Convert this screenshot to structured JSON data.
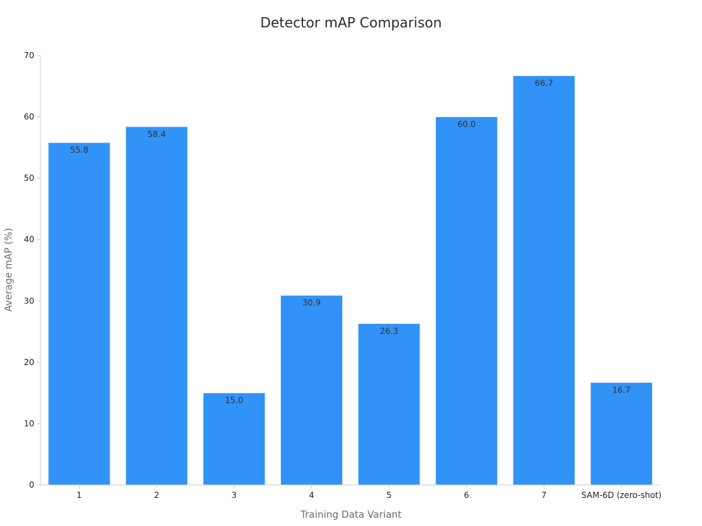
{
  "chart_data": {
    "type": "bar",
    "title": "Detector mAP Comparison",
    "xlabel": "Training Data Variant",
    "ylabel": "Average mAP (%)",
    "categories": [
      "1",
      "2",
      "3",
      "4",
      "5",
      "6",
      "7",
      "SAM-6D (zero-shot)"
    ],
    "values": [
      55.8,
      58.4,
      15.0,
      30.9,
      26.3,
      60.0,
      66.7,
      16.7
    ],
    "value_labels": [
      "55.8",
      "58.4",
      "15.0",
      "30.9",
      "26.3",
      "60.0",
      "66.7",
      "16.7"
    ],
    "ylim": [
      0,
      70
    ],
    "yticks": [
      0,
      10,
      20,
      30,
      40,
      50,
      60,
      70
    ],
    "grid": false,
    "legend": "none",
    "bar_color": "#3192f7",
    "axis_color": "#cccccc"
  }
}
